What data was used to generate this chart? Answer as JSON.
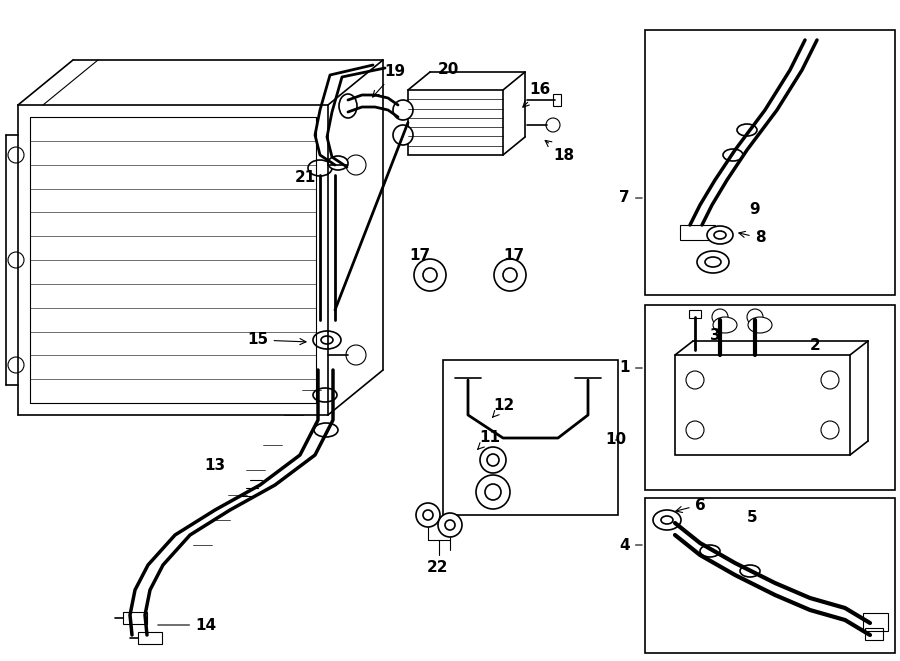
{
  "bg_color": "#ffffff",
  "line_color": "#000000",
  "fig_width": 9.0,
  "fig_height": 6.61,
  "dpi": 100,
  "label_fontsize": 11
}
